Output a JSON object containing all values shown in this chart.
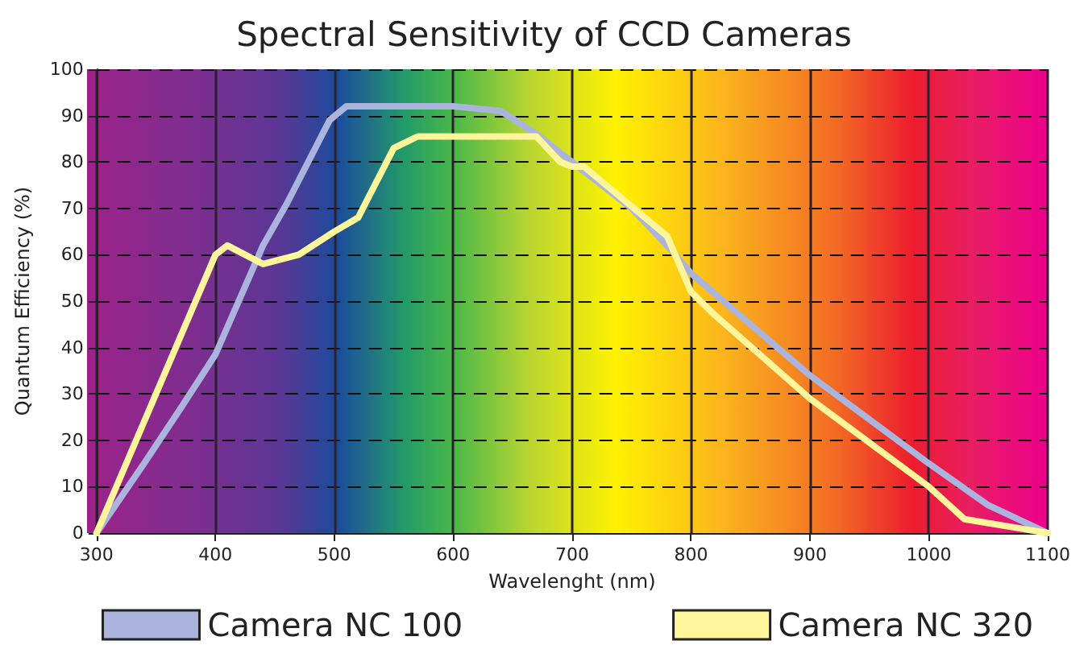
{
  "chart_data": {
    "type": "line",
    "title": "Spectral Sensitivity of CCD Cameras",
    "xlabel": "Wavelenght (nm)",
    "ylabel": "Quantum Efficiency (%)",
    "xlim": [
      300,
      1100
    ],
    "xticks": [
      300,
      400,
      500,
      600,
      700,
      800,
      900,
      1000,
      1100
    ],
    "ylim": [
      0,
      100
    ],
    "yticks": [
      0,
      10,
      20,
      30,
      40,
      50,
      60,
      70,
      80,
      90,
      100
    ],
    "grid": true,
    "legend": "bottom",
    "marker": "none",
    "series": [
      {
        "name": "Camera NC 100",
        "color": "#aab4dc",
        "x": [
          300,
          340,
          371,
          400,
          440,
          460,
          496,
          510,
          600,
          640,
          670,
          700,
          750,
          780,
          800,
          900,
          1000,
          1050,
          1100
        ],
        "values": [
          0,
          15,
          27,
          38.5,
          62,
          71,
          89,
          92,
          92,
          91,
          86,
          80,
          70,
          62,
          56,
          34,
          15,
          6,
          0
        ]
      },
      {
        "name": "Camera NC 320",
        "color": "#fff59a",
        "x": [
          300,
          400,
          410,
          440,
          470,
          500,
          520,
          550,
          570,
          670,
          690,
          700,
          710,
          780,
          800,
          820,
          900,
          1000,
          1030,
          1100
        ],
        "values": [
          0,
          60,
          62,
          58,
          60,
          65,
          68,
          83,
          85.5,
          85.5,
          80,
          79,
          79,
          64,
          52,
          47,
          29,
          10,
          3,
          0
        ]
      }
    ]
  }
}
